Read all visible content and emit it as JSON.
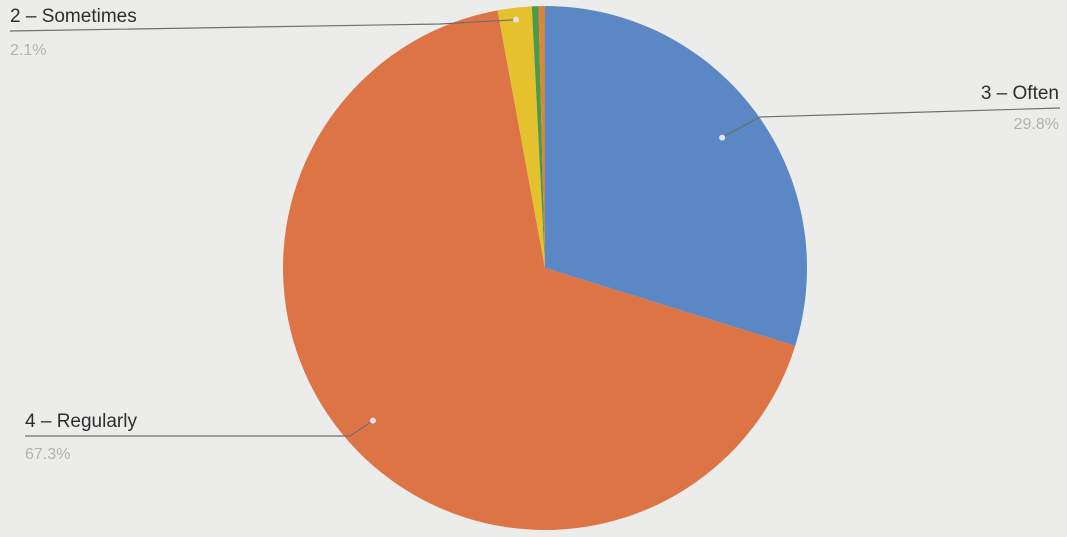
{
  "chart_data": {
    "type": "pie",
    "slices": [
      {
        "label": "3 – Often",
        "percent_label": "29.8%",
        "value": 29.8,
        "color": "#5b88c4"
      },
      {
        "label": "4 – Regularly",
        "percent_label": "67.3%",
        "value": 67.3,
        "color": "#dd7445"
      },
      {
        "label": "2 – Sometimes",
        "percent_label": "2.1%",
        "value": 2.1,
        "color": "#e6c12e"
      },
      {
        "label": "",
        "percent_label": "",
        "value": 0.4,
        "color": "#4a9a4a"
      },
      {
        "label": "",
        "percent_label": "",
        "value": 0.4,
        "color": "#d8873c"
      }
    ]
  }
}
